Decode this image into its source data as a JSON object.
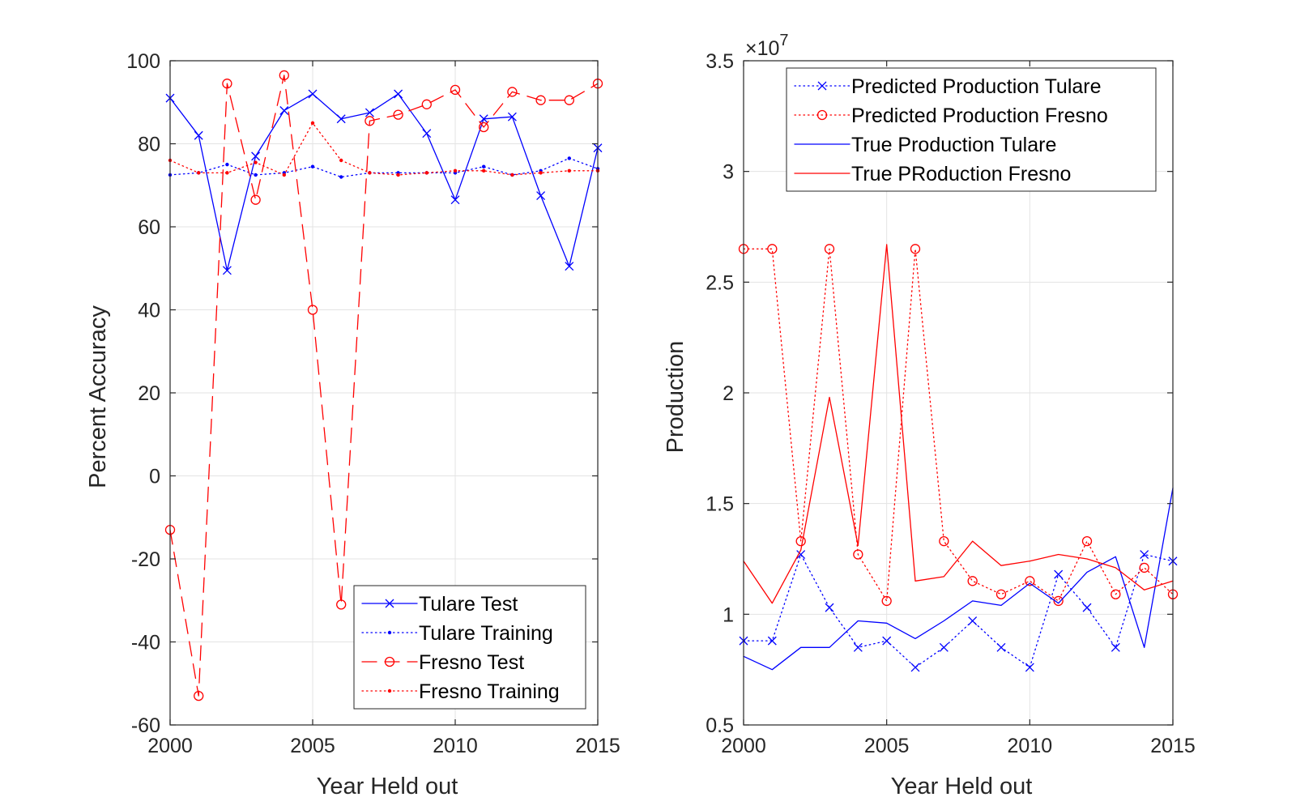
{
  "chart_data": [
    {
      "type": "line",
      "title": "",
      "xlabel": "Year Held out",
      "ylabel": "Percent Accuracy",
      "xlim": [
        2000,
        2015
      ],
      "ylim": [
        -60,
        100
      ],
      "x_ticks": [
        2000,
        2005,
        2010,
        2015
      ],
      "y_ticks": [
        -60,
        -40,
        -20,
        0,
        20,
        40,
        60,
        80,
        100
      ],
      "grid": true,
      "legend_position": "bottom-right",
      "x": [
        2000,
        2001,
        2002,
        2003,
        2004,
        2005,
        2006,
        2007,
        2008,
        2009,
        2010,
        2011,
        2012,
        2013,
        2014,
        2015
      ],
      "series": [
        {
          "name": "Tulare Test",
          "color": "#0000ff",
          "line": "solid",
          "marker": "x",
          "values": [
            91,
            82,
            49.5,
            77,
            88,
            92,
            86,
            87.5,
            92,
            82.5,
            66.5,
            86,
            86.5,
            67.5,
            50.5,
            79
          ]
        },
        {
          "name": "Tulare Training",
          "color": "#0000ff",
          "line": "dotted",
          "marker": "dot",
          "values": [
            72.5,
            73,
            75,
            72.5,
            73,
            74.5,
            72,
            73,
            73,
            73,
            73,
            74.5,
            72.5,
            73.5,
            76.5,
            74
          ]
        },
        {
          "name": "Fresno Test",
          "color": "#ff0000",
          "line": "dashed",
          "marker": "circle",
          "values": [
            -13,
            -53,
            94.5,
            66.5,
            96.5,
            40,
            -31,
            85.5,
            87,
            89.5,
            93,
            84,
            92.5,
            90.5,
            90.5,
            94.5
          ]
        },
        {
          "name": "Fresno Training",
          "color": "#ff0000",
          "line": "dotted",
          "marker": "dot",
          "values": [
            76,
            73,
            73,
            75.5,
            72.5,
            85,
            76,
            73,
            72.5,
            73,
            73.5,
            73.5,
            72.5,
            73,
            73.5,
            73.5
          ]
        }
      ]
    },
    {
      "type": "line",
      "title": "",
      "xlabel": "Year Held out",
      "ylabel": "Production",
      "multiplier_label": "×10",
      "multiplier_exponent": "7",
      "xlim": [
        2000,
        2015
      ],
      "ylim": [
        0.5,
        3.5
      ],
      "x_ticks": [
        2000,
        2005,
        2010,
        2015
      ],
      "y_ticks": [
        0.5,
        1,
        1.5,
        2,
        2.5,
        3,
        3.5
      ],
      "grid": true,
      "legend_position": "top",
      "x": [
        2000,
        2001,
        2002,
        2003,
        2004,
        2005,
        2006,
        2007,
        2008,
        2009,
        2010,
        2011,
        2012,
        2013,
        2014,
        2015
      ],
      "series": [
        {
          "name": "Predicted Production Tulare",
          "color": "#0000ff",
          "line": "dotted",
          "marker": "x",
          "values": [
            0.88,
            0.88,
            1.27,
            1.03,
            0.85,
            0.88,
            0.76,
            0.85,
            0.97,
            0.85,
            0.76,
            1.18,
            1.03,
            0.85,
            1.27,
            1.24
          ]
        },
        {
          "name": "Predicted Production Fresno",
          "color": "#ff0000",
          "line": "dotted",
          "marker": "circle",
          "values": [
            2.65,
            2.65,
            1.33,
            2.65,
            1.27,
            1.06,
            2.65,
            1.33,
            1.15,
            1.09,
            1.15,
            1.06,
            1.33,
            1.09,
            1.21,
            1.09
          ]
        },
        {
          "name": "True Production Tulare",
          "color": "#0000ff",
          "line": "solid",
          "marker": "none",
          "values": [
            0.81,
            0.75,
            0.85,
            0.85,
            0.97,
            0.96,
            0.89,
            0.97,
            1.06,
            1.04,
            1.14,
            1.05,
            1.19,
            1.26,
            0.85,
            1.57
          ]
        },
        {
          "name": "True PRoduction Fresno",
          "color": "#ff0000",
          "line": "solid",
          "marker": "none",
          "values": [
            1.24,
            1.05,
            1.29,
            1.98,
            1.31,
            2.67,
            1.15,
            1.17,
            1.33,
            1.22,
            1.24,
            1.27,
            1.25,
            1.21,
            1.11,
            1.15
          ]
        }
      ]
    }
  ]
}
